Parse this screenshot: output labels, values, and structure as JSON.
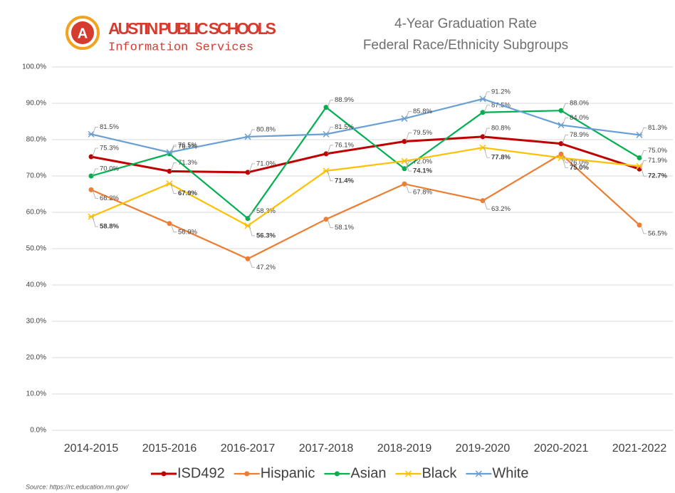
{
  "chart_data": {
    "type": "line",
    "org": "AUSTIN PUBLIC SCHOOLS",
    "department": "Information Services",
    "title": "4-Year Graduation Rate",
    "subtitle": "Federal Race/Ethnicity Subgroups",
    "source": "Source:  https://rc.education.mn.gov/",
    "categories": [
      "2014-2015",
      "2015-2016",
      "2016-2017",
      "2017-2018",
      "2018-2019",
      "2019-2020",
      "2020-2021",
      "2021-2022"
    ],
    "ylim": [
      0,
      100
    ],
    "yticks": [
      {
        "value": 0,
        "label": "0.0%"
      },
      {
        "value": 10,
        "label": "10.0%"
      },
      {
        "value": 20,
        "label": "20.0%"
      },
      {
        "value": 30,
        "label": "30.0%"
      },
      {
        "value": 40,
        "label": "40.0%"
      },
      {
        "value": 50,
        "label": "50.0%"
      },
      {
        "value": 60,
        "label": "60.0%"
      },
      {
        "value": 70,
        "label": "70.0%"
      },
      {
        "value": 80,
        "label": "80.0%"
      },
      {
        "value": 90,
        "label": "90.0%"
      },
      {
        "value": 100,
        "label": "100.0%"
      }
    ],
    "grid": true,
    "legend": "bottom",
    "series": [
      {
        "name": "ISD492",
        "color": "#c00000",
        "marker": "circle",
        "values": [
          75.3,
          71.3,
          71.0,
          76.1,
          79.5,
          80.8,
          78.9,
          71.9
        ],
        "value_labels": [
          "75.3%",
          "71.3%",
          "71.0%",
          "76.1%",
          "79.5%",
          "80.8%",
          "78.9%",
          "71.9%"
        ]
      },
      {
        "name": "Hispanic",
        "color": "#ed7d31",
        "marker": "circle",
        "values": [
          66.2,
          56.9,
          47.2,
          58.1,
          67.8,
          63.2,
          76.0,
          56.5
        ],
        "value_labels": [
          "66.2%",
          "56.9%",
          "47.2%",
          "58.1%",
          "67.8%",
          "63.2%",
          "76.0%",
          "56.5%"
        ]
      },
      {
        "name": "Asian",
        "color": "#00b050",
        "marker": "circle",
        "values": [
          70.0,
          76.1,
          58.3,
          88.9,
          72.0,
          87.5,
          88.0,
          75.0
        ],
        "value_labels": [
          "70.0%",
          "76.1%",
          "58.3%",
          "88.9%",
          "72.0%",
          "87.5%",
          "88.0%",
          "75.0%"
        ]
      },
      {
        "name": "Black",
        "color": "#ffc000",
        "marker": "x",
        "values": [
          58.8,
          67.9,
          56.3,
          71.4,
          74.1,
          77.8,
          75.0,
          72.7
        ],
        "value_labels": [
          "58.8%",
          "67.9%",
          "56.3%",
          "71.4%",
          "74.1%",
          "77.8%",
          "75.0%",
          "72.7%"
        ]
      },
      {
        "name": "White",
        "color": "#6a9fd4",
        "marker": "x",
        "values": [
          81.5,
          76.5,
          80.8,
          81.5,
          85.8,
          91.2,
          84.0,
          81.3
        ],
        "value_labels": [
          "81.5%",
          "76.5%",
          "80.8%",
          "81.5%",
          "85.8%",
          "91.2%",
          "84.0%",
          "81.3%"
        ]
      }
    ]
  }
}
